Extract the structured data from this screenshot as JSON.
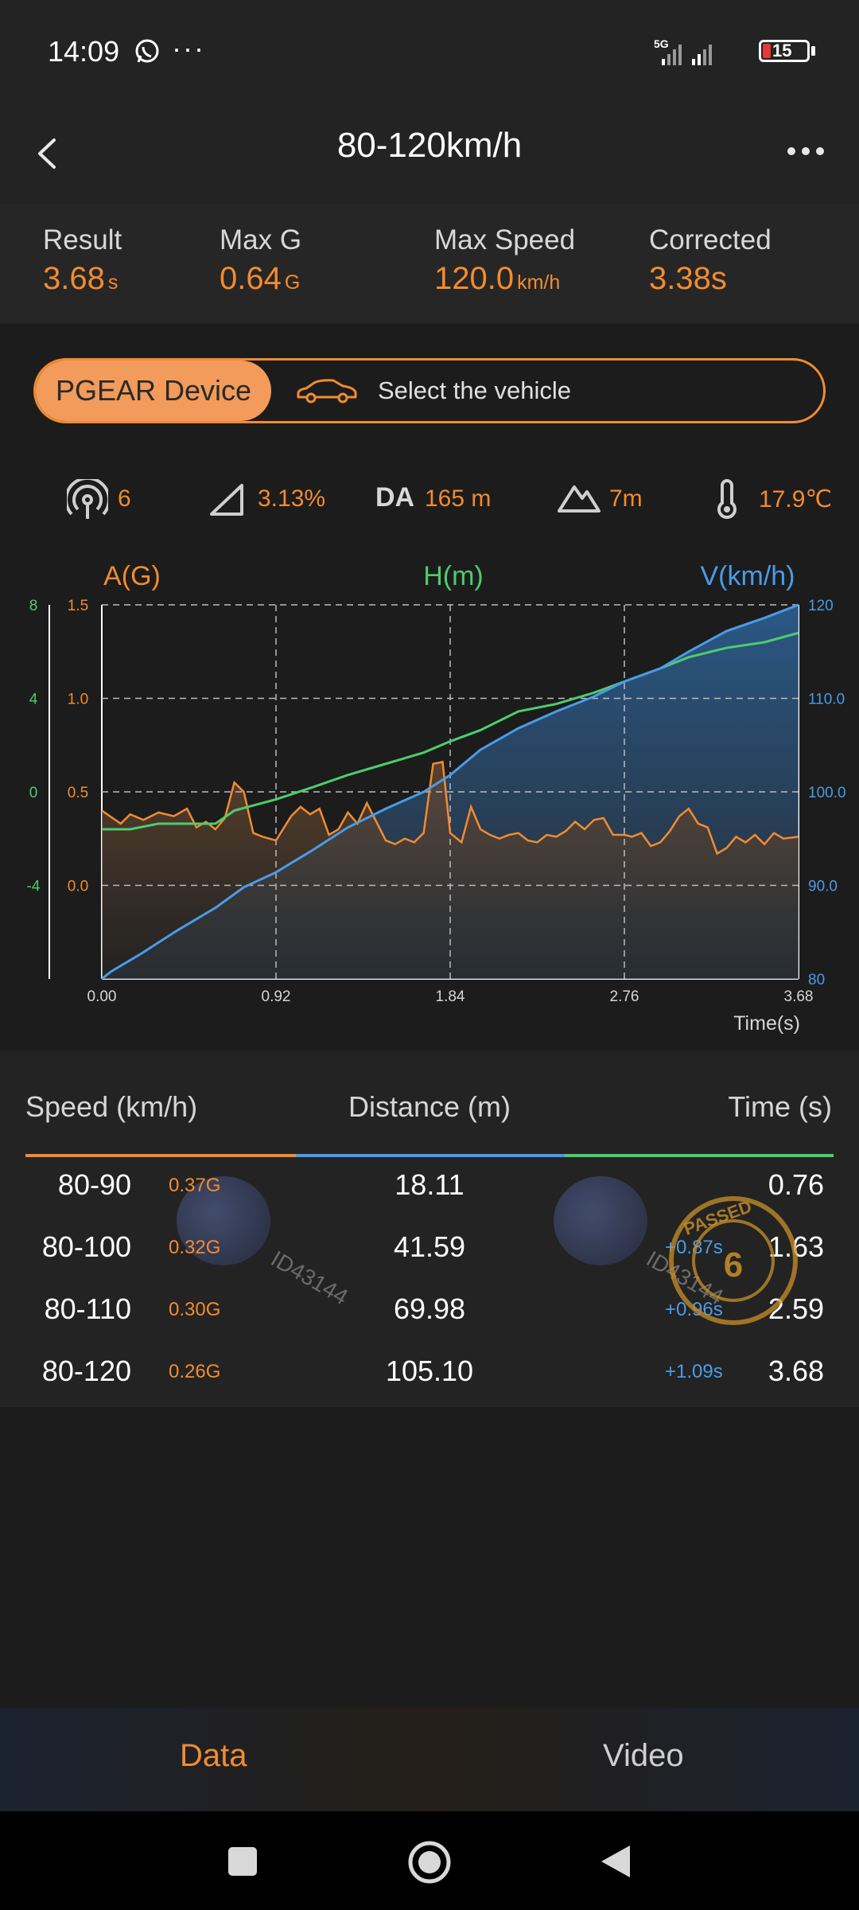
{
  "status": {
    "time": "14:09",
    "dots": "···",
    "network": "5G",
    "battery": "15"
  },
  "header": {
    "title": "80-120km/h"
  },
  "stats": [
    {
      "label": "Result",
      "value": "3.68",
      "unit": "s"
    },
    {
      "label": "Max G",
      "value": "0.64",
      "unit": "G"
    },
    {
      "label": "Max Speed",
      "value": "120.0",
      "unit": "km/h"
    },
    {
      "label": "Corrected",
      "value": "3.38s",
      "unit": ""
    }
  ],
  "device": {
    "device_label": "PGEAR Device",
    "vehicle_label": "Select the vehicle"
  },
  "env": {
    "satellites": "6",
    "slope": "3.13%",
    "da_label": "DA",
    "da_value": "165 m",
    "altitude": "7m",
    "temperature": "17.9℃"
  },
  "chart_data": {
    "type": "line",
    "xlabel": "Time(s)",
    "x_ticks": [
      "0.00",
      "0.92",
      "1.84",
      "2.76",
      "3.68"
    ],
    "axes": {
      "left_a_label": "A(G)",
      "left_h_label": "H(m)",
      "right_v_label": "V(km/h)",
      "a_ticks": [
        "1.5",
        "1.0",
        "0.5",
        "0.0"
      ],
      "h_ticks": [
        "8",
        "4",
        "0",
        "-4"
      ],
      "v_ticks": [
        "120",
        "110.0",
        "100.0",
        "90.0",
        "80"
      ]
    },
    "xlim": [
      0,
      3.68
    ],
    "a_lim": [
      -0.5,
      1.5
    ],
    "h_lim": [
      -8,
      12
    ],
    "v_lim": [
      80,
      120
    ],
    "colors": {
      "a": "#f28b30",
      "h": "#4ccd6c",
      "v": "#4a9be8"
    },
    "series": [
      {
        "name": "V(km/h)",
        "x": [
          0,
          0.05,
          0.2,
          0.4,
          0.6,
          0.75,
          0.92,
          1.1,
          1.3,
          1.5,
          1.7,
          1.84,
          2.0,
          2.2,
          2.4,
          2.6,
          2.76,
          2.95,
          3.1,
          3.3,
          3.5,
          3.68
        ],
        "values": [
          80,
          80.8,
          82.6,
          85.2,
          87.6,
          89.8,
          91.4,
          93.6,
          96.2,
          98.2,
          100.0,
          101.8,
          104.5,
          106.8,
          108.6,
          110.2,
          111.8,
          113.2,
          115.0,
          117.2,
          118.6,
          120.0
        ]
      },
      {
        "name": "A(G)",
        "x": [
          0,
          0.1,
          0.15,
          0.22,
          0.3,
          0.38,
          0.45,
          0.5,
          0.55,
          0.6,
          0.65,
          0.7,
          0.75,
          0.8,
          0.85,
          0.92,
          1.0,
          1.05,
          1.1,
          1.15,
          1.2,
          1.25,
          1.3,
          1.35,
          1.4,
          1.45,
          1.5,
          1.55,
          1.6,
          1.65,
          1.7,
          1.75,
          1.8,
          1.84,
          1.9,
          1.95,
          2.0,
          2.05,
          2.1,
          2.15,
          2.2,
          2.25,
          2.3,
          2.35,
          2.4,
          2.45,
          2.5,
          2.55,
          2.6,
          2.65,
          2.7,
          2.76,
          2.8,
          2.85,
          2.9,
          2.95,
          3.0,
          3.05,
          3.1,
          3.15,
          3.2,
          3.25,
          3.3,
          3.35,
          3.4,
          3.45,
          3.5,
          3.55,
          3.6,
          3.68
        ],
        "values": [
          0.4,
          0.33,
          0.38,
          0.35,
          0.39,
          0.37,
          0.41,
          0.31,
          0.34,
          0.3,
          0.36,
          0.55,
          0.5,
          0.28,
          0.26,
          0.24,
          0.37,
          0.42,
          0.38,
          0.41,
          0.27,
          0.3,
          0.39,
          0.33,
          0.44,
          0.34,
          0.24,
          0.22,
          0.25,
          0.23,
          0.28,
          0.65,
          0.66,
          0.28,
          0.23,
          0.42,
          0.3,
          0.27,
          0.25,
          0.27,
          0.28,
          0.24,
          0.23,
          0.27,
          0.26,
          0.29,
          0.34,
          0.3,
          0.35,
          0.36,
          0.27,
          0.27,
          0.26,
          0.28,
          0.21,
          0.23,
          0.29,
          0.37,
          0.41,
          0.33,
          0.31,
          0.17,
          0.2,
          0.26,
          0.23,
          0.27,
          0.22,
          0.28,
          0.25,
          0.26
        ]
      },
      {
        "name": "H(m)",
        "x": [
          0,
          0.15,
          0.3,
          0.5,
          0.6,
          0.7,
          0.92,
          1.1,
          1.3,
          1.5,
          1.7,
          1.84,
          2.0,
          2.2,
          2.4,
          2.6,
          2.76,
          2.95,
          3.1,
          3.3,
          3.5,
          3.68
        ],
        "values": [
          0.0,
          0.0,
          0.3,
          0.3,
          0.3,
          1.0,
          1.6,
          2.2,
          2.9,
          3.5,
          4.1,
          4.7,
          5.3,
          6.3,
          6.7,
          7.3,
          7.9,
          8.6,
          9.2,
          9.7,
          10.0,
          10.5
        ]
      }
    ]
  },
  "table": {
    "headers": {
      "speed": "Speed (km/h)",
      "distance": "Distance (m)",
      "time": "Time (s)"
    },
    "watermark_text": "ID43144",
    "stamp_text": "PASSED",
    "stamp_number": "6",
    "rows": [
      {
        "speed": "80-90",
        "g": "0.37G",
        "distance": "18.11",
        "delta": "",
        "time": "0.76"
      },
      {
        "speed": "80-100",
        "g": "0.32G",
        "distance": "41.59",
        "delta": "+0.87s",
        "time": "1.63"
      },
      {
        "speed": "80-110",
        "g": "0.30G",
        "distance": "69.98",
        "delta": "+0.96s",
        "time": "2.59"
      },
      {
        "speed": "80-120",
        "g": "0.26G",
        "distance": "105.10",
        "delta": "+1.09s",
        "time": "3.68"
      }
    ]
  },
  "tabs": {
    "data_label": "Data",
    "video_label": "Video"
  }
}
